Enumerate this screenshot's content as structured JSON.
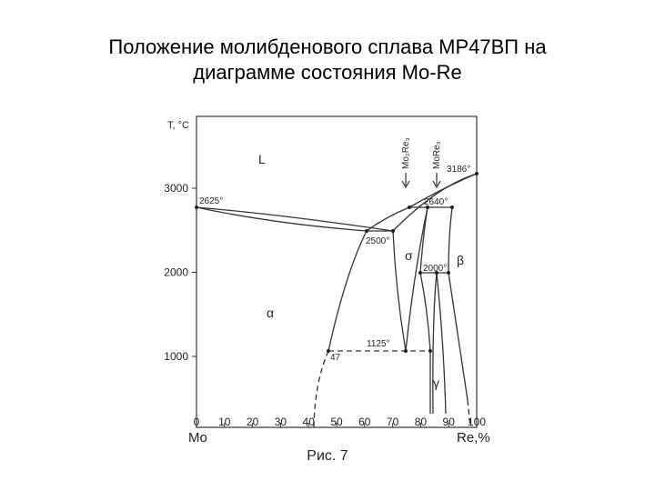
{
  "title": "Положение молибденового сплава МР47ВП на диаграмме состояния Mo-Re",
  "caption": "Рис. 7",
  "axes": {
    "y_label": "T, °C",
    "yticks": [
      1000,
      2000,
      3000
    ],
    "x_left_label": "Mo",
    "x_right_label": "Re,%",
    "xticks": [
      0,
      10,
      20,
      30,
      40,
      50,
      60,
      70,
      80,
      90,
      100
    ]
  },
  "phases": {
    "liquid": "L",
    "alpha": "α",
    "sigma": "σ",
    "beta": "β",
    "gamma": "γ"
  },
  "points": {
    "mo_melt": "2625°",
    "eutectic_left": "2500°",
    "peritectic": "2640°",
    "re_melt": "3186°",
    "eutectoid": "2000°",
    "low": "1125°",
    "alloy": "47"
  },
  "compounds": {
    "first": "Mo₂Re₃",
    "second": "MoRe₃"
  }
}
